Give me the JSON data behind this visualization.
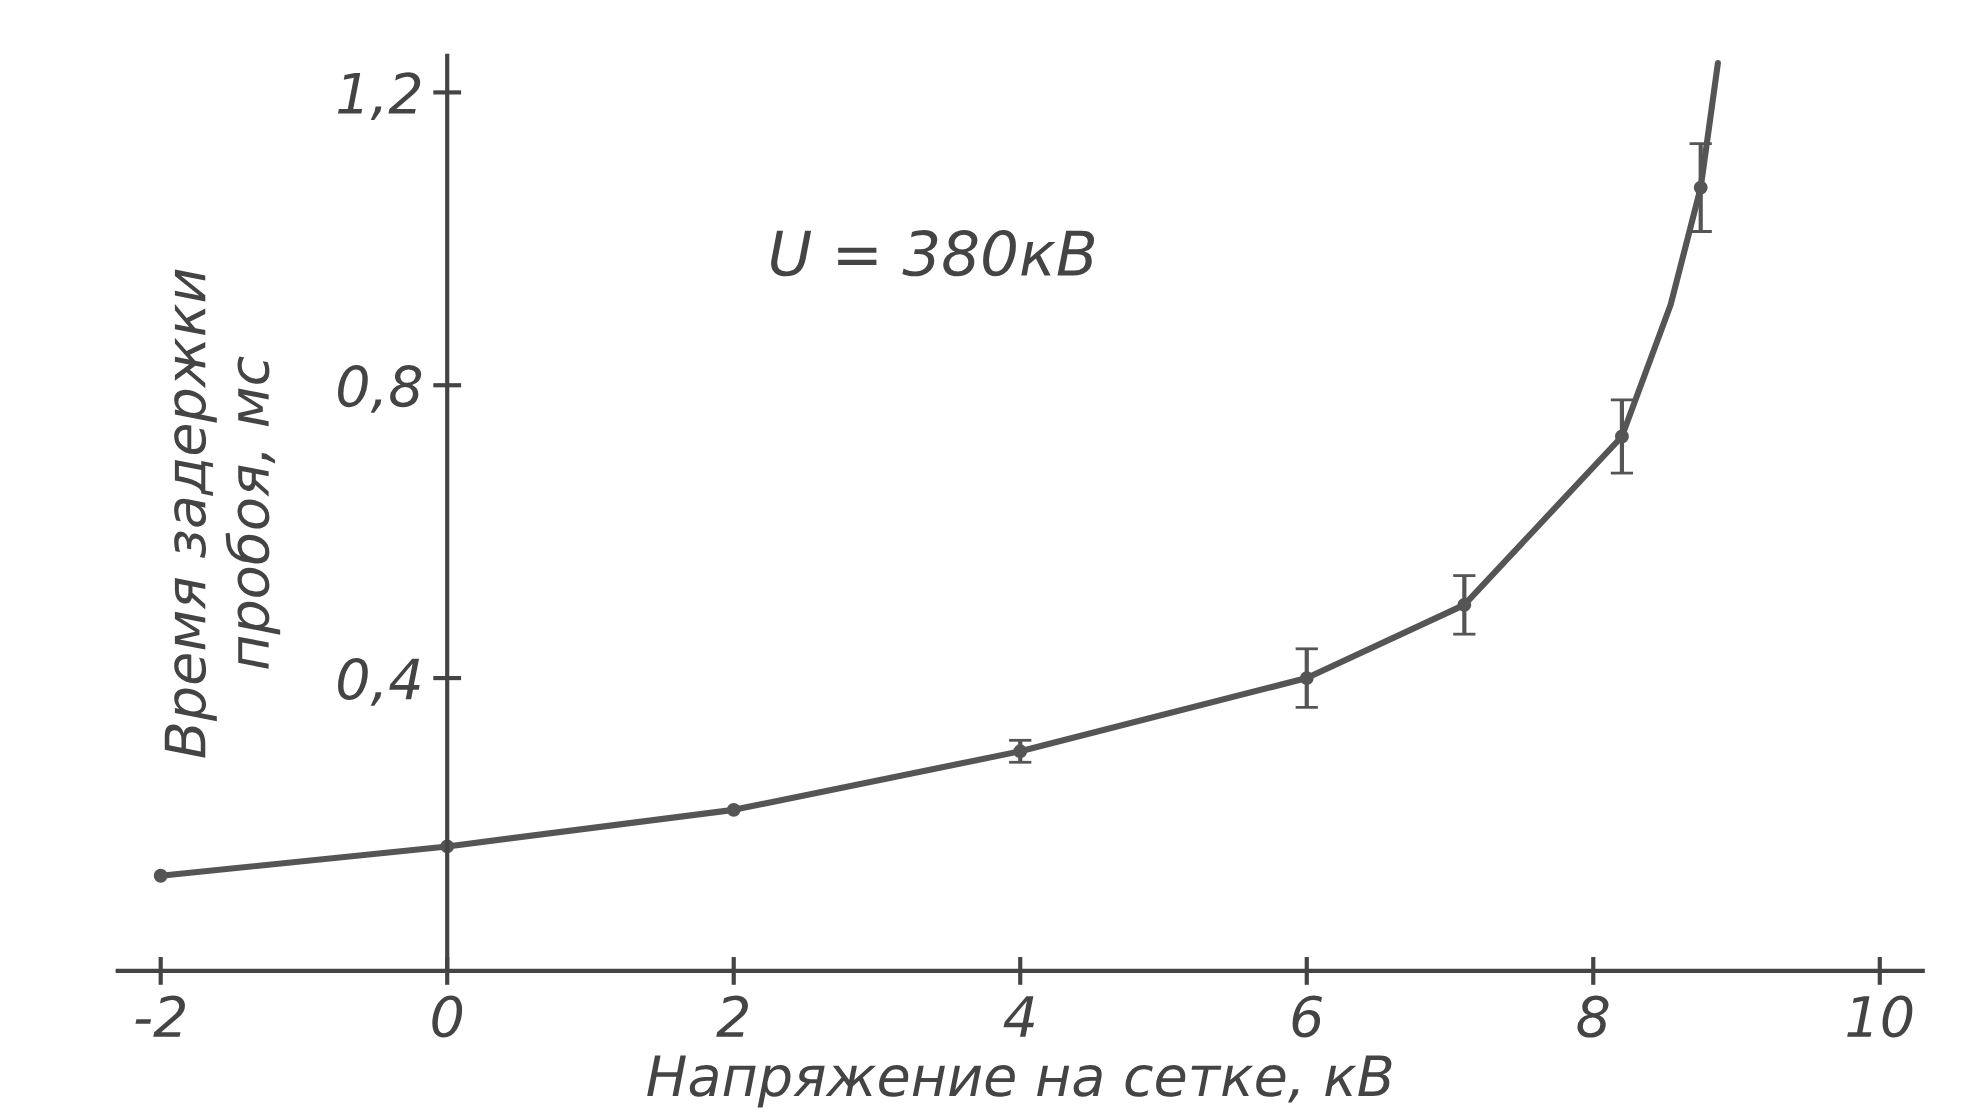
{
  "chart_data": {
    "type": "scatter",
    "xlabel": "Напряжение на сетке, кВ",
    "ylabel": "Время задержки\nпробоя, мс",
    "annotations": [
      "U = 380кВ"
    ],
    "series": [
      {
        "type": "line",
        "marker": "none",
        "color": "#555555",
        "x": [
          -2,
          0,
          2,
          4,
          6,
          7.1,
          8.2,
          8.54,
          8.75,
          8.87
        ],
        "values": [
          0.13,
          0.17,
          0.22,
          0.3,
          0.4,
          0.5,
          0.73,
          0.91,
          1.07,
          1.24
        ]
      },
      {
        "marker": "circle",
        "color": "#555555",
        "x": [
          -2,
          0,
          2,
          4,
          6,
          7.1,
          8.2,
          8.75
        ],
        "values": [
          0.13,
          0.17,
          0.22,
          0.3,
          0.4,
          0.5,
          0.73,
          1.07
        ],
        "errors": [
          null,
          null,
          null,
          0.015,
          0.04,
          0.04,
          0.05,
          0.06
        ]
      }
    ],
    "xlim": [
      -2.3,
      10.3
    ],
    "ylim": [
      0,
      1.25
    ],
    "xticks": [
      -2,
      0,
      2,
      4,
      6,
      8,
      10
    ],
    "yticks": [
      {
        "value": 0.4,
        "label": "0,4"
      },
      {
        "value": 0.8,
        "label": "0,8"
      },
      {
        "value": 1.2,
        "label": "1,2"
      }
    ],
    "grid": false,
    "legend": false,
    "line_style": "solid"
  }
}
